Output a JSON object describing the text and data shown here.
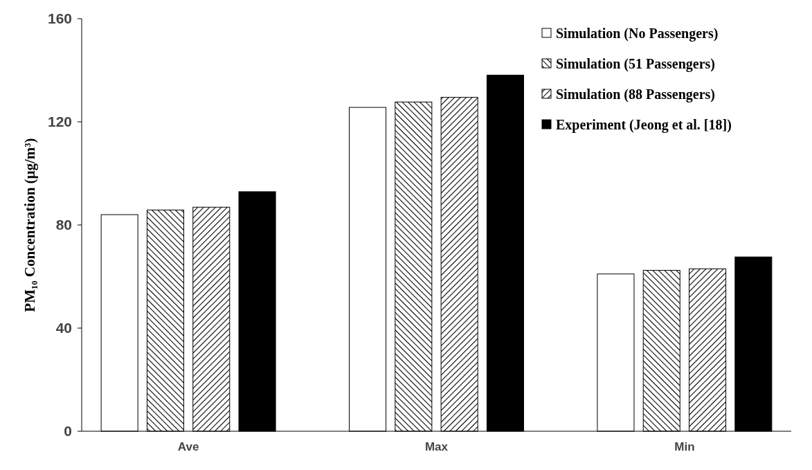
{
  "chart_data": {
    "type": "bar",
    "ylabel": "PM₁₀ Concentration (μg/m³)",
    "categories": [
      "Ave",
      "Max",
      "Min"
    ],
    "series": [
      {
        "name": "Simulation (No Passengers)",
        "color": "#ffffff",
        "values": [
          84,
          125.6,
          61
        ]
      },
      {
        "name": "Simulation (51 Passengers)",
        "color": "#000000",
        "values": [
          85.8,
          127.7,
          62.4
        ]
      },
      {
        "name": "Simulation (88 Passengers)",
        "color": "#000000",
        "values": [
          86.9,
          129.5,
          63
        ]
      },
      {
        "name": "Experiment (Jeong et al. [18])",
        "color": "#000000",
        "values": [
          92.9,
          138.1,
          67.6
        ]
      }
    ],
    "ylim": [
      0,
      160
    ],
    "yticks": [
      0,
      40,
      80,
      120,
      160
    ],
    "grid": false,
    "legend": "top right"
  }
}
